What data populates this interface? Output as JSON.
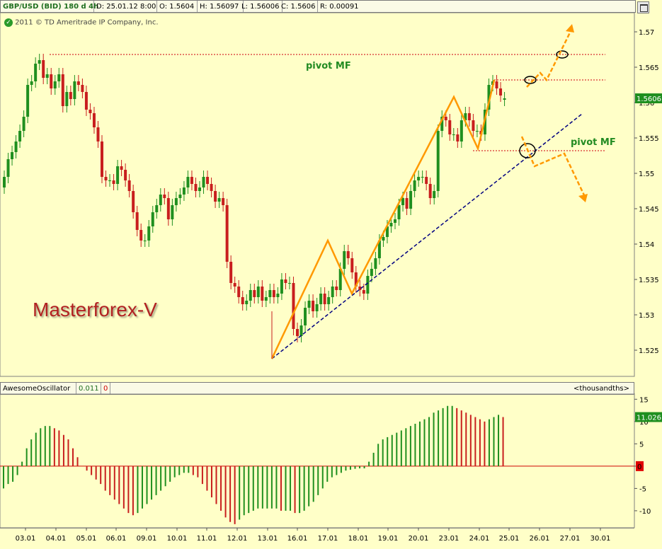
{
  "header": {
    "symbol": "GBP/USD (BID) 180 d 4h",
    "date": "D: 25.01.12 8:00",
    "open": "O: 1.5604",
    "high": "H: 1.56097",
    "low": "L: 1.56006",
    "close": "C: 1.5606",
    "range": "R: 0.00091"
  },
  "copyright": "2011 © TD Ameritrade IP Company, Inc.",
  "watermark": "Masterforex-V",
  "annotations": {
    "pivot_top": "pivot MF",
    "pivot_right": "pivot MF"
  },
  "oscillator_bar": {
    "name": "AwesomeOscillator",
    "value": "0.011",
    "zero": "0",
    "units": "<thousandths>"
  },
  "colors": {
    "background": "#ffffc8",
    "up_candle": "#1f8f1f",
    "down_candle": "#c81e1e",
    "trend_line": "#000080",
    "zigzag": "#ff9900",
    "pivot_line": "#d83030",
    "label_green": "#228b22",
    "watermark": "#b22222",
    "current_price_tag": "#1f8f1f",
    "oscillator_tag": "#1f8f1f",
    "zero_tag": "#e00000"
  },
  "chart_data": [
    {
      "type": "candlestick",
      "title": "GBP/USD (BID) 180 d 4h",
      "ylim": [
        1.5215,
        1.5725
      ],
      "y_ticks": [
        "1.57",
        "1.565",
        "1.56",
        "1.555",
        "1.55",
        "1.545",
        "1.54",
        "1.535",
        "1.53",
        "1.525"
      ],
      "x_ticks": [
        "03.01",
        "04.01",
        "05.01",
        "06.01",
        "09.01",
        "10.01",
        "11.01",
        "12.01",
        "13.01",
        "16.01",
        "17.01",
        "18.01",
        "19.01",
        "20.01",
        "23.01",
        "24.01",
        "25.01",
        "26.01",
        "27.01",
        "30.01"
      ],
      "current_price": "1.5606",
      "pivot_levels": [
        1.5668,
        1.5632,
        1.5532
      ],
      "candles_close": [
        1.5495,
        1.552,
        1.553,
        1.5545,
        1.556,
        1.558,
        1.5625,
        1.563,
        1.5655,
        1.566,
        1.5635,
        1.564,
        1.562,
        1.563,
        1.564,
        1.5595,
        1.5615,
        1.5605,
        1.563,
        1.5625,
        1.5615,
        1.559,
        1.5585,
        1.5565,
        1.5545,
        1.5495,
        1.549,
        1.549,
        1.5485,
        1.551,
        1.5505,
        1.549,
        1.5475,
        1.5445,
        1.542,
        1.5405,
        1.5405,
        1.5425,
        1.5445,
        1.5455,
        1.547,
        1.5465,
        1.5435,
        1.5455,
        1.5465,
        1.547,
        1.548,
        1.5495,
        1.5485,
        1.5475,
        1.548,
        1.5495,
        1.5485,
        1.5475,
        1.546,
        1.5465,
        1.5455,
        1.5375,
        1.5345,
        1.534,
        1.5325,
        1.5315,
        1.532,
        1.5335,
        1.5325,
        1.534,
        1.532,
        1.5325,
        1.5335,
        1.5325,
        1.533,
        1.535,
        1.5345,
        1.5345,
        1.528,
        1.527,
        1.5285,
        1.531,
        1.532,
        1.5305,
        1.5315,
        1.533,
        1.5315,
        1.5325,
        1.534,
        1.5335,
        1.5365,
        1.539,
        1.538,
        1.536,
        1.534,
        1.5335,
        1.533,
        1.5355,
        1.5365,
        1.538,
        1.5405,
        1.541,
        1.5425,
        1.543,
        1.5435,
        1.5455,
        1.5465,
        1.545,
        1.5475,
        1.549,
        1.5495,
        1.5495,
        1.5485,
        1.5465,
        1.5475,
        1.556,
        1.558,
        1.5575,
        1.5555,
        1.5555,
        1.5545,
        1.5575,
        1.5585,
        1.5575,
        1.556,
        1.556,
        1.5555,
        1.559,
        1.5625,
        1.563,
        1.562,
        1.561,
        1.5606
      ],
      "candles_open": [
        1.548,
        1.5495,
        1.552,
        1.553,
        1.5545,
        1.556,
        1.558,
        1.5625,
        1.563,
        1.5655,
        1.566,
        1.5635,
        1.564,
        1.562,
        1.563,
        1.564,
        1.5595,
        1.5615,
        1.5605,
        1.563,
        1.5625,
        1.5615,
        1.559,
        1.5585,
        1.5565,
        1.5545,
        1.5495,
        1.549,
        1.549,
        1.5485,
        1.551,
        1.5505,
        1.549,
        1.5475,
        1.5445,
        1.542,
        1.5405,
        1.5405,
        1.5425,
        1.5445,
        1.5455,
        1.547,
        1.5465,
        1.5435,
        1.5455,
        1.5465,
        1.547,
        1.548,
        1.5495,
        1.5485,
        1.5475,
        1.548,
        1.5495,
        1.5485,
        1.5475,
        1.546,
        1.5465,
        1.5455,
        1.5375,
        1.5345,
        1.534,
        1.5325,
        1.5315,
        1.532,
        1.5335,
        1.5325,
        1.534,
        1.532,
        1.5325,
        1.5335,
        1.5325,
        1.533,
        1.535,
        1.5345,
        1.5345,
        1.528,
        1.527,
        1.5285,
        1.531,
        1.532,
        1.5305,
        1.5315,
        1.533,
        1.5315,
        1.5325,
        1.534,
        1.5335,
        1.5365,
        1.539,
        1.538,
        1.536,
        1.534,
        1.5335,
        1.533,
        1.5355,
        1.5365,
        1.538,
        1.5405,
        1.541,
        1.5425,
        1.543,
        1.5435,
        1.5455,
        1.5465,
        1.545,
        1.5475,
        1.549,
        1.5495,
        1.5495,
        1.5485,
        1.5465,
        1.5475,
        1.556,
        1.558,
        1.5575,
        1.5555,
        1.5555,
        1.5545,
        1.5575,
        1.5585,
        1.5575,
        1.556,
        1.556,
        1.5555,
        1.559,
        1.5625,
        1.563,
        1.562,
        1.5604
      ]
    },
    {
      "type": "bar",
      "title": "AwesomeOscillator",
      "ylabel": "<thousandths>",
      "ylim": [
        -13.5,
        16
      ],
      "y_ticks": [
        "15",
        "10",
        "5",
        "0",
        "-5",
        "-10"
      ],
      "current_value": "11.026",
      "values": [
        -5,
        -4,
        -3.5,
        -2,
        1,
        4,
        6,
        7.5,
        8.5,
        9,
        9,
        8.5,
        8,
        7,
        6,
        4,
        2,
        0,
        -1,
        -2,
        -3,
        -4,
        -5.5,
        -6.5,
        -7.5,
        -8.5,
        -9.5,
        -10.5,
        -11,
        -10.5,
        -9.5,
        -8.5,
        -7.5,
        -6.5,
        -5.5,
        -4.5,
        -3.5,
        -2.5,
        -2,
        -1.5,
        -1.5,
        -2,
        -2.5,
        -4,
        -5.5,
        -7,
        -8.5,
        -10,
        -11.5,
        -12.5,
        -13,
        -12,
        -11,
        -10.5,
        -10,
        -9.5,
        -9.5,
        -9.5,
        -9.5,
        -9.5,
        -10,
        -10,
        -10,
        -10.5,
        -10.5,
        -10,
        -9,
        -8,
        -6.5,
        -5,
        -3.5,
        -2.5,
        -2,
        -1.5,
        -1,
        -0.8,
        -0.6,
        -0.5,
        -0.5,
        1,
        3,
        5,
        6,
        6.5,
        7,
        7.5,
        8,
        8.5,
        9,
        9.5,
        10,
        10.5,
        11,
        12,
        12.5,
        13,
        13.5,
        13.5,
        13,
        12.5,
        12,
        11.5,
        11,
        10.5,
        10,
        10.5,
        11,
        11.5,
        11
      ]
    }
  ]
}
